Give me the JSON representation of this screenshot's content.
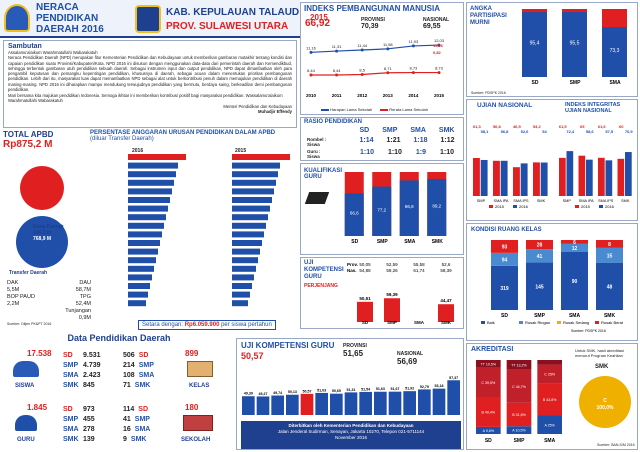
{
  "header": {
    "title_line1": "NERACA",
    "title_line2": "PENDIDIKAN",
    "title_line3": "DAERAH 2016",
    "kab": "KAB. KEPULAUAN TALAUD",
    "prov": "PROV. SULAWESI UTARA"
  },
  "sambutan": {
    "title": "Sambutan",
    "greeting": "Assalamu'alaikum Warahmatullahi Wabarakatuh",
    "p1": "Neraca Pendidikan Daerah (NPD) merupakan fitur Kementerian Pendidikan dan Kebudayaan untuk memberikan gambaran mutakhir tentang kondisi dan capaian pendidikan suatu Provinsi/Kabupaten/Kota. NPD 2016 ini disusun dengan menggunakan data-data dari pemerintah daerah dan Kemendikbud, sehingga terbentuk gambaran utuh pendidikan sebuah daerah. Sebagai instrumen input dan output pendidikan, NPD dapat dimanfaatkan oleh para pengambil keputusan dan pemangku kepentingan pendidikan, khususnya di daerah, sebagai acuan dalam menentukan prioritas pembangunan pendidikan. Lebih dari itu, masyarakat luas dapat memanfaatkan NPD sebagai alat untuk berkontribusi penuh dalam memajukan pendidikan di daerah masing-masing. NPD 2016 ini diharapkan mampu mendukung terwujudnya pendidikan yang bermutu, berdaya saing, berkeadilan demi pembangunan pendidikan.",
    "p2": "Mari bersama kita majukan pendidikan Indonesia. Semoga ikhtiar ini memberikan kontribusi positif bagi masyarakat pendidikan. Wassalamu'alaikum Warahmatullahi Wabarakatuh",
    "sign1": "Menteri Pendidikan dan Kebudayaan",
    "sign2": "Muhadjir Effendy"
  },
  "total_apbd": {
    "label": "TOTAL APBD",
    "value": "Rp875,2 M",
    "dana_daerah_label": "Dana Daerah",
    "dana_daerah_value": "106,3 M",
    "transfer_label": "Transfer Daerah",
    "transfer_value": "768,9 M",
    "dak_label": "DAK",
    "dak_value": "5,5M",
    "bop_label": "BOP PAUD",
    "bop_value": "2,2M",
    "dau_label": "DAU",
    "dau_value": "58,7M",
    "tpg_label": "TPG",
    "tpg_value": "52,4M",
    "tunjangan_label": "Tunjangan",
    "tunjangan_value": "0,9M",
    "source": "Sumber: Ditjen PK&PT 2016"
  },
  "anggaran": {
    "title": "PERSENTASE ANGGARAN URUSAN PENDIDIKAN DALAM APBD",
    "subtitle": "(diluar Transfer Daerah)",
    "year1": "2016",
    "year2": "2015",
    "setara_label": "Setara dengan:",
    "setara_value": "Rp6.059.900",
    "setara_suffix": "per siswa pertahun",
    "source": "Sumber: Ditjen PK 2016"
  },
  "ipm": {
    "title": "INDEKS PEMBANGUNAN MANUSIA",
    "year": "2015",
    "kab_value": "66,92",
    "prov_label": "PROVINSI",
    "prov_value": "70,39",
    "nas_label": "NASIONAL",
    "nas_value": "69,55",
    "lama_top": "11,16",
    "lama_bot": "0,82",
    "legend1": "Harapan Lama Sekolah",
    "legend2": "Rerata Lama Sekolah",
    "source": "Sumber: BPS 2015"
  },
  "apm": {
    "title": "ANGKA PARTISIPASI MURNI",
    "source": "Sumber: PDSPK 2016"
  },
  "rasio": {
    "title": "RASIO PENDIDIKAN",
    "cols": [
      "SD",
      "SMP",
      "SMA",
      "SMK"
    ],
    "rombel_label": "Rombel : Siswa",
    "guru_label": "Guru : Siswa",
    "rombel": [
      "1:14",
      "1:21",
      "1:18",
      "1:12"
    ],
    "guru": [
      "1:10",
      "1:10",
      "1:9",
      "1:10"
    ],
    "source": "Sumber: PDSPK 2016"
  },
  "un": {
    "title": "UJIAN NASIONAL",
    "integritas_title": "INDEKS INTEGRITAS UJIAN NASIONAL",
    "source": "Sumber: Puspendik 2016"
  },
  "kualifikasi": {
    "title": "KUALIFIKASI GURU",
    "source": "Sumber: PDSPK 2016"
  },
  "kondisi": {
    "title": "KONDISI RUANG KELAS",
    "legend": [
      "Baik",
      "Rusak Ringan",
      "Rusak Sedang",
      "Rusak Berat"
    ],
    "source": "Sumber: PDSPK 2016"
  },
  "ukg": {
    "title": "UJI KOMPETENSI GURU",
    "kab_value": "50,57",
    "prov_label": "PROVINSI",
    "prov_value": "51,65",
    "nas_label": "NASIONAL",
    "nas_value": "56,69",
    "footer1": "Diterbitkan oleh Kementerian Pendidikan dan Kebudayaan",
    "footer2": "Jalan Jenderal Sudirman, Senayan, Jakarta 10270, Telepon 021-5711144",
    "footer3": "November 2016",
    "source": "Sumber: Ditjen GTK 2016"
  },
  "ukg_perjenjang": {
    "title": "UJI KOMPETENSI GURU",
    "sub": "PERJENJANG",
    "prov_label": "Prov.",
    "nas_label": "Nas.",
    "source": "Sumber: Ditjen GTK 2016"
  },
  "akreditasi": {
    "title": "AKREDITASI",
    "note": "Untuk SMK, hasil akreditasi menurut Program Keahlian",
    "smk_label": "SMK",
    "source": "Sumber: BAN-S/M 2016"
  },
  "dpd": {
    "title": "Data Pendidikan Daerah",
    "siswa_total": "17.538",
    "siswa_label": "SISWA",
    "siswa_rows": [
      [
        "SD",
        "9.531"
      ],
      [
        "SMP",
        "4.739"
      ],
      [
        "SMA",
        "2.423"
      ],
      [
        "SMK",
        "845"
      ]
    ],
    "guru_total": "1.845",
    "guru_label": "GURU",
    "guru_rows": [
      [
        "SD",
        "973"
      ],
      [
        "SMP",
        "455"
      ],
      [
        "SMA",
        "278"
      ],
      [
        "SMK",
        "139"
      ]
    ],
    "kelas_total": "899",
    "kelas_label": "KELAS",
    "kelas_rows": [
      [
        "506",
        "SD"
      ],
      [
        "214",
        "SMP"
      ],
      [
        "108",
        "SMA"
      ],
      [
        "71",
        "SMK"
      ]
    ],
    "sekolah_total": "180",
    "sekolah_label": "SEKOLAH",
    "sekolah_rows": [
      [
        "114",
        "SD"
      ],
      [
        "41",
        "SMP"
      ],
      [
        "16",
        "SMA"
      ],
      [
        "9",
        "SMK"
      ]
    ]
  },
  "chart_data": [
    {
      "type": "line",
      "title": "INDEKS PEMBANGUNAN MANUSIA",
      "categories": [
        "2010",
        "2011",
        "2012",
        "2013",
        "2014",
        "2015"
      ],
      "series": [
        {
          "name": "Harapan Lama Sekolah",
          "values": [
            11.16,
            11.31,
            11.44,
            11.58,
            11.93,
            12.03
          ],
          "color": "#1f4fa8"
        },
        {
          "name": "Rerata Lama Sekolah",
          "values": [
            8.44,
            8.44,
            8.5,
            8.71,
            8.73,
            8.73
          ],
          "color": "#e02020"
        }
      ]
    },
    {
      "type": "bar",
      "title": "ANGKA PARTISIPASI MURNI",
      "categories": [
        "SD",
        "SMP",
        "SMA"
      ],
      "series": [
        {
          "name": "APM",
          "values": [
            95.4,
            95.5,
            73.3
          ],
          "color": "#1f4fa8"
        }
      ],
      "ylim": [
        0,
        100
      ]
    },
    {
      "type": "bar",
      "title": "UJIAN NASIONAL",
      "categories": [
        "SMP",
        "SMA IPA",
        "SMA IPS",
        "SMK"
      ],
      "series": [
        {
          "name": "2015",
          "values": [
            61.3,
            56.8,
            46.5,
            54.2
          ],
          "color": "#e02020"
        },
        {
          "name": "2016",
          "values": [
            58.1,
            56.8,
            52.6,
            54.0
          ],
          "color": "#1f4fa8"
        }
      ],
      "ylim": [
        0,
        100
      ]
    },
    {
      "type": "bar",
      "title": "INDEKS INTEGRITAS UJIAN NASIONAL",
      "categories": [
        "SMP",
        "SMA IPA",
        "SMA IPS",
        "SMK"
      ],
      "series": [
        {
          "name": "2015",
          "values": [
            61.5,
            65.0,
            61.6,
            60.0
          ],
          "color": "#e02020"
        },
        {
          "name": "2016",
          "values": [
            72.4,
            58.6,
            57.5,
            70.9
          ],
          "color": "#1f4fa8"
        }
      ],
      "ylim": [
        0,
        100
      ]
    },
    {
      "type": "bar",
      "title": "KUALIFIKASI GURU",
      "categories": [
        "SD",
        "SMP",
        "SMA",
        "SMK"
      ],
      "series": [
        {
          "name": "S1/D4",
          "values": [
            66.6,
            77.2,
            86.8,
            89.2
          ],
          "color": "#1f4fa8"
        }
      ],
      "ylim": [
        0,
        100
      ]
    },
    {
      "type": "bar",
      "title": "UJI KOMPETENSI GURU PERJENJANG",
      "categories": [
        "SD",
        "SMP",
        "SMA",
        "SMK"
      ],
      "series": [
        {
          "name": "Kab",
          "values": [
            50.51,
            59.39,
            0,
            44.47
          ],
          "color": "#e02020"
        },
        {
          "name": "Prov.",
          "values": [
            50.05,
            52.59,
            55.58,
            52.6
          ]
        },
        {
          "name": "Nas.",
          "values": [
            54.88,
            59.26,
            61.74,
            58.39
          ]
        }
      ],
      "ylim": [
        0,
        100
      ]
    },
    {
      "type": "bar",
      "title": "KONDISI RUANG KELAS",
      "categories": [
        "SD",
        "SMP",
        "SMA",
        "SMK"
      ],
      "series": [
        {
          "name": "Baik",
          "values": [
            319,
            145,
            90,
            48
          ],
          "color": "#1f4fa8"
        },
        {
          "name": "Rusak Ringan",
          "values": [
            94,
            41,
            12,
            15
          ],
          "color": "#4a8ad0"
        },
        {
          "name": "Rusak Sedang",
          "values": [
            0,
            0,
            0,
            0
          ],
          "color": "#f0b000"
        },
        {
          "name": "Rusak Berat",
          "values": [
            93,
            28,
            6,
            8
          ],
          "color": "#e02020"
        }
      ]
    },
    {
      "type": "bar",
      "title": "UJI KOMPETENSI GURU",
      "values": [
        49.39,
        49.27,
        49.74,
        50.13,
        50.57,
        51.03,
        50.65,
        51.31,
        51.54,
        51.63,
        51.67,
        51.92,
        52.79,
        53.18,
        57.37
      ],
      "series": [
        {
          "name": "UKG",
          "color": "#1f4fa8"
        }
      ]
    },
    {
      "type": "bar",
      "title": "AKREDITASI",
      "categories": [
        "SD",
        "SMP",
        "SMA"
      ],
      "series": [
        {
          "name": "A",
          "values": [
            9.6,
            10.5,
            25.0
          ],
          "color": "#1f4fa8"
        },
        {
          "name": "B",
          "values": [
            40.4,
            31.6,
            43.8
          ],
          "color": "#e02020"
        },
        {
          "name": "C",
          "values": [
            39.5,
            44.7,
            25.0
          ],
          "color": "#c0202a"
        },
        {
          "name": "TT",
          "values": [
            10.5,
            13.2,
            6.2
          ],
          "color": "#8a1020"
        }
      ]
    },
    {
      "type": "pie",
      "title": "SMK",
      "categories": [
        "C"
      ],
      "values": [
        100
      ],
      "color": "#f0b000"
    }
  ]
}
